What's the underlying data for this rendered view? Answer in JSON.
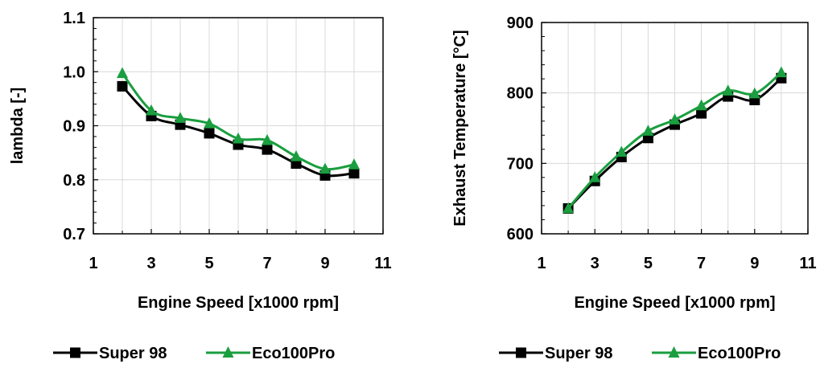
{
  "chart_data": [
    {
      "type": "line",
      "xlabel": "Engine Speed [x1000 rpm]",
      "ylabel": "lambda [-]",
      "xlim": [
        1,
        11
      ],
      "ylim": [
        0.7,
        1.1
      ],
      "xticks": [
        "1",
        "3",
        "5",
        "7",
        "9",
        "11"
      ],
      "yticks": [
        "0.7",
        "0.8",
        "0.9",
        "1.0",
        "1.1"
      ],
      "grid": true,
      "legend_position": "bottom",
      "x": [
        2,
        3,
        4,
        5,
        6,
        7,
        8,
        9,
        10
      ],
      "series": [
        {
          "name": "Super 98",
          "color": "#000000",
          "marker": "square",
          "values": [
            0.973,
            0.918,
            0.902,
            0.886,
            0.865,
            0.856,
            0.83,
            0.808,
            0.812
          ]
        },
        {
          "name": "Eco100Pro",
          "color": "#1a9e3f",
          "marker": "triangle",
          "values": [
            0.997,
            0.928,
            0.914,
            0.904,
            0.876,
            0.873,
            0.843,
            0.82,
            0.828
          ]
        }
      ]
    },
    {
      "type": "line",
      "xlabel": "Engine Speed [x1000 rpm]",
      "ylabel": "Exhaust Temperature [°C]",
      "xlim": [
        1,
        11
      ],
      "ylim": [
        600,
        900
      ],
      "xticks": [
        "1",
        "3",
        "5",
        "7",
        "9",
        "11"
      ],
      "yticks": [
        "600",
        "700",
        "800",
        "900"
      ],
      "grid": true,
      "legend_position": "bottom",
      "x": [
        2,
        3,
        4,
        5,
        6,
        7,
        8,
        9,
        10
      ],
      "series": [
        {
          "name": "Super 98",
          "color": "#000000",
          "marker": "square",
          "values": [
            636,
            675,
            709,
            736,
            755,
            771,
            795,
            790,
            821
          ]
        },
        {
          "name": "Eco100Pro",
          "color": "#1a9e3f",
          "marker": "triangle",
          "values": [
            636,
            680,
            716,
            746,
            762,
            782,
            803,
            799,
            829
          ]
        }
      ]
    }
  ]
}
